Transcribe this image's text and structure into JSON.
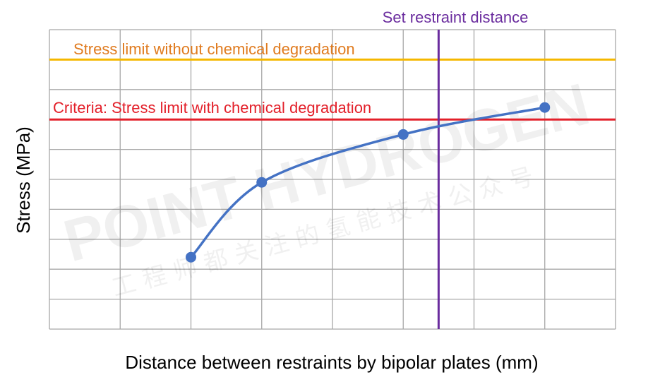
{
  "watermark": {
    "line1": "POINT HYDROGEN",
    "line2": "工 程 师 都 关 注 的 氢 能 技 术 公 众 号"
  },
  "chart_data": {
    "type": "line",
    "title": "",
    "xlabel": "Distance between restraints by bipolar plates (mm)",
    "ylabel": "Stress (MPa)",
    "xlim": [
      0,
      8
    ],
    "ylim": [
      0,
      10
    ],
    "grid": true,
    "x_tick_labels": [],
    "y_tick_labels": [],
    "series": [
      {
        "x": [
          2,
          3,
          5,
          7
        ],
        "y": [
          2.4,
          4.9,
          6.5,
          7.4
        ],
        "color": "#4472c4",
        "smooth": true
      }
    ],
    "reference_lines": {
      "stress_limit_no_degradation": {
        "label": "Stress limit without chemical degradation",
        "y": 9.0,
        "color": "#f5b800",
        "label_color": "#e07b1f"
      },
      "criteria": {
        "label": "Criteria: Stress limit with chemical degradation",
        "y": 7.0,
        "color": "#e3202a",
        "label_color": "#e3202a"
      },
      "set_restraint_distance": {
        "label": "Set restraint distance",
        "x": 5.5,
        "color": "#6a2c9e",
        "label_color": "#6a2c9e"
      }
    }
  }
}
